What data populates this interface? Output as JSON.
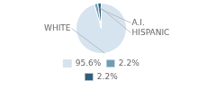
{
  "chart_data": {
    "type": "pie",
    "categories": [
      "WHITE",
      "A.I.",
      "HISPANIC"
    ],
    "values": [
      95.6,
      2.2,
      2.2
    ],
    "value_labels": [
      "95.6%",
      "2.2%",
      "2.2%"
    ],
    "colors": [
      "#d6e4f0",
      "#6b9eb8",
      "#2e5f7a"
    ],
    "legend": "bottom"
  }
}
